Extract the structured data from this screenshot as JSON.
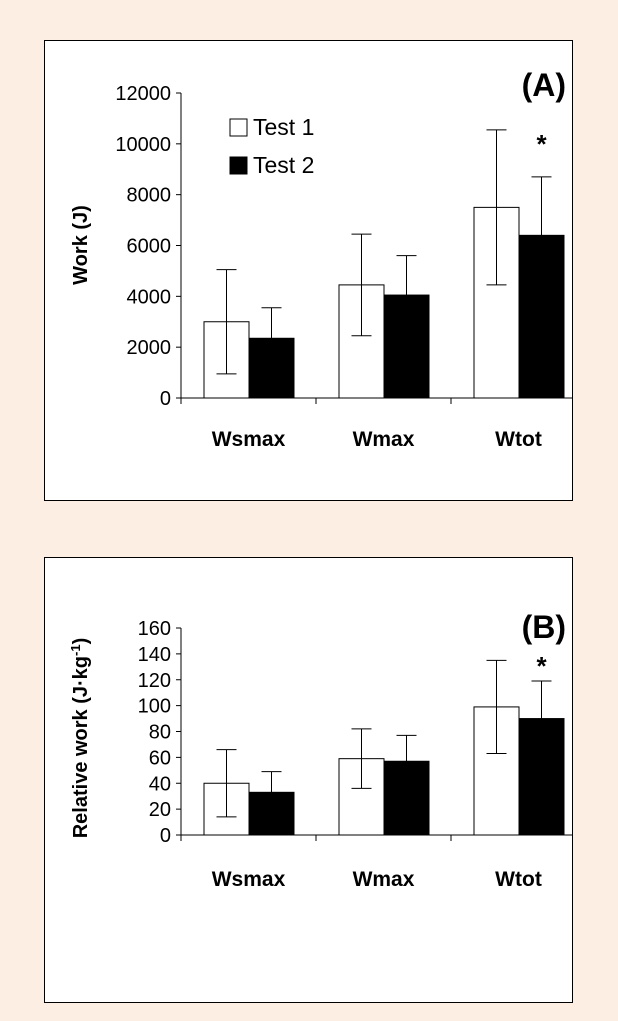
{
  "chart_data": [
    {
      "panel_label": "(A)",
      "type": "bar",
      "ylabel": "Work (J)",
      "ylim": [
        0,
        12000
      ],
      "yticks": [
        0,
        2000,
        4000,
        6000,
        8000,
        10000,
        12000
      ],
      "ytick_labels": [
        "0",
        "2000",
        "4000",
        "6000",
        "8000",
        "10000",
        "12000"
      ],
      "categories": [
        "Wsmax",
        "Wmax",
        "Wtot"
      ],
      "series": [
        {
          "name": "Test 1",
          "fill": "#ffffff",
          "values": [
            3000,
            4450,
            7500
          ],
          "error": [
            2050,
            2000,
            3050
          ]
        },
        {
          "name": "Test 2",
          "fill": "#000000",
          "values": [
            2350,
            4050,
            6400
          ],
          "error": [
            1200,
            1550,
            2300
          ]
        }
      ],
      "significance_marker": "*",
      "significance_category": "Wtot",
      "legend": "top-left"
    },
    {
      "panel_label": "(B)",
      "type": "bar",
      "ylabel": "Relative work (J·kg",
      "ylabel_sup": "-1",
      "ylabel_tail": ")",
      "ylim": [
        0,
        160
      ],
      "yticks": [
        0,
        20,
        40,
        60,
        80,
        100,
        120,
        140,
        160
      ],
      "ytick_labels": [
        "0",
        "20",
        "40",
        "60",
        "80",
        "100",
        "120",
        "140",
        "160"
      ],
      "categories": [
        "Wsmax",
        "Wmax",
        "Wtot"
      ],
      "series": [
        {
          "name": "Test 1",
          "fill": "#ffffff",
          "values": [
            40,
            59,
            99
          ],
          "error": [
            26,
            23,
            36
          ]
        },
        {
          "name": "Test 2",
          "fill": "#000000",
          "values": [
            33,
            57,
            90
          ],
          "error": [
            16,
            20,
            29
          ]
        }
      ],
      "significance_marker": "*",
      "significance_category": "Wtot"
    }
  ]
}
